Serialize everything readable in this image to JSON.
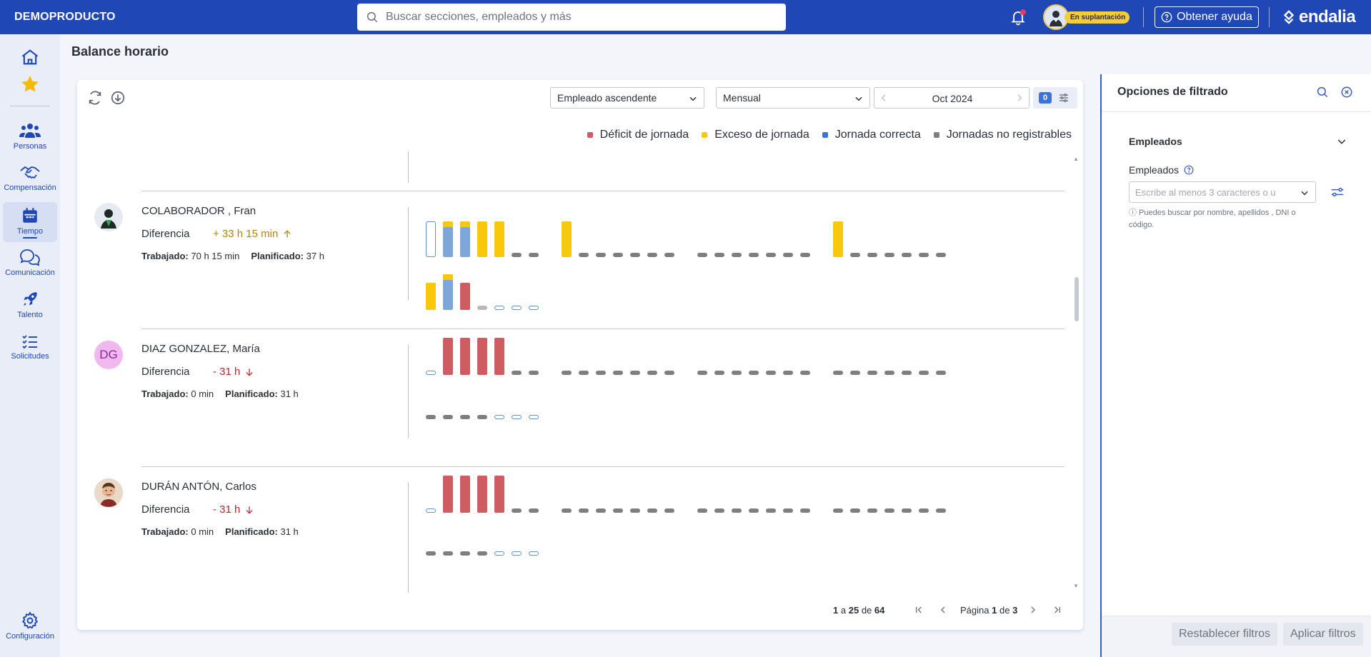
{
  "header": {
    "company": "DEMOPRODUCTO",
    "search_placeholder": "Buscar secciones, empleados y más",
    "impersonation_badge": "En suplantación",
    "help_label": "Obtener ayuda",
    "logo_text": "endalia",
    "accent_color": "#1f47b6"
  },
  "sidebar": {
    "items": [
      {
        "label": "",
        "icon": "home-icon"
      },
      {
        "label": "",
        "icon": "star-icon"
      },
      {
        "label": "Personas",
        "icon": "people-icon"
      },
      {
        "label": "Compensación",
        "icon": "handshake-icon"
      },
      {
        "label": "Tiempo",
        "icon": "calendar-icon",
        "active": true
      },
      {
        "label": "Comunicación",
        "icon": "chat-icon"
      },
      {
        "label": "Talento",
        "icon": "rocket-icon"
      },
      {
        "label": "Solicitudes",
        "icon": "checklist-icon"
      },
      {
        "label": "Configuración",
        "icon": "gear-icon"
      }
    ]
  },
  "main": {
    "title": "Balance horario",
    "sort_value": "Empleado ascendente",
    "period_value": "Mensual",
    "month_value": "Oct 2024",
    "filter_count": "0",
    "legend": [
      {
        "label": "Déficit de jornada",
        "color": "#cd5c63"
      },
      {
        "label": "Exceso de jornada",
        "color": "#f9c80c"
      },
      {
        "label": "Jornada correcta",
        "color": "#3a74d6"
      },
      {
        "label": "Jornadas no registrables",
        "color": "#7f7f7f"
      }
    ],
    "employees": [
      {
        "name": "COLABORADOR , Fran",
        "diff_label": "Diferencia",
        "diff": "+ 33 h 15 min",
        "trend": "up",
        "worked_label": "Trabajado:",
        "worked": "70 h 15 min",
        "planned_label": "Planificado:",
        "planned": "37 h",
        "avatar": "silhouette-avatar"
      },
      {
        "name": "DIAZ GONZALEZ, María",
        "diff_label": "Diferencia",
        "diff": "- 31 h",
        "trend": "down",
        "worked_label": "Trabajado:",
        "worked": "0 min",
        "planned_label": "Planificado:",
        "planned": "31 h",
        "initials": "DG"
      },
      {
        "name": "DURÁN ANTÓN, Carlos",
        "diff_label": "Diferencia",
        "diff": "- 31 h",
        "trend": "down",
        "worked_label": "Trabajado:",
        "worked": "0 min",
        "planned_label": "Planificado:",
        "planned": "31 h",
        "avatar": "photo-avatar"
      }
    ],
    "pagination": {
      "from": "1",
      "a": "a",
      "to": "25",
      "de": "de",
      "total": "64",
      "page_label": "Página",
      "page": "1",
      "page_de": "de",
      "pages": "3"
    }
  },
  "filter_panel": {
    "title": "Opciones de filtrado",
    "section": "Empleados",
    "field_label": "Empleados",
    "field_placeholder": "Escribe al menos 3 caracteres o u",
    "hint": "ⓘ Puedes buscar por nombre, apellidos , DNI o código.",
    "reset_label": "Restablecer filtros",
    "apply_label": "Aplicar filtros"
  }
}
